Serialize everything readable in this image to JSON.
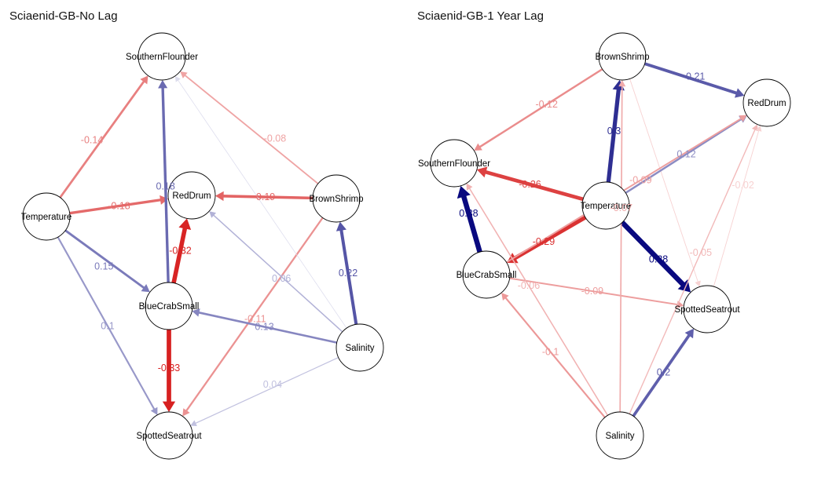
{
  "panels": [
    {
      "title": "Sciaenid-GB-No Lag",
      "nodes": [
        "SouthernFlounder",
        "RedDrum",
        "Temperature",
        "BrownShrimp",
        "BlueCrabSmall",
        "Salinity",
        "SpottedSeatrout"
      ],
      "edges": [
        {
          "from": "Temperature",
          "to": "SouthernFlounder",
          "label": "-0.14",
          "value": -0.14
        },
        {
          "from": "Temperature",
          "to": "RedDrum",
          "label": "-0.18",
          "value": -0.18
        },
        {
          "from": "Temperature",
          "to": "BlueCrabSmall",
          "label": "0.15",
          "value": 0.15
        },
        {
          "from": "Temperature",
          "to": "SpottedSeatrout",
          "label": "0.1",
          "value": 0.1
        },
        {
          "from": "BlueCrabSmall",
          "to": "SouthernFlounder",
          "label": "0.18",
          "value": 0.18
        },
        {
          "from": "BlueCrabSmall",
          "to": "RedDrum",
          "label": "-0.32",
          "value": -0.32
        },
        {
          "from": "BlueCrabSmall",
          "to": "SpottedSeatrout",
          "label": "-0.33",
          "value": -0.33
        },
        {
          "from": "BrownShrimp",
          "to": "SouthernFlounder",
          "label": "-0.08",
          "value": -0.08
        },
        {
          "from": "BrownShrimp",
          "to": "RedDrum",
          "label": "-0.19",
          "value": -0.19
        },
        {
          "from": "BrownShrimp",
          "to": "SpottedSeatrout",
          "label": "-0.11",
          "value": -0.11
        },
        {
          "from": "Salinity",
          "to": "BrownShrimp",
          "label": "0.22",
          "value": 0.22
        },
        {
          "from": "Salinity",
          "to": "RedDrum",
          "label": "0.06",
          "value": 0.06
        },
        {
          "from": "Salinity",
          "to": "BlueCrabSmall",
          "label": "0.13",
          "value": 0.13
        },
        {
          "from": "Salinity",
          "to": "SpottedSeatrout",
          "label": "0.04",
          "value": 0.04
        },
        {
          "from": "Salinity",
          "to": "SouthernFlounder",
          "label": "",
          "value": 0.01
        }
      ]
    },
    {
      "title": "Sciaenid-GB-1 Year Lag",
      "nodes": [
        "BrownShrimp",
        "RedDrum",
        "SouthernFlounder",
        "Temperature",
        "BlueCrabSmall",
        "SpottedSeatrout",
        "Salinity"
      ],
      "edges": [
        {
          "from": "BrownShrimp",
          "to": "RedDrum",
          "label": "0.21",
          "value": 0.21
        },
        {
          "from": "BrownShrimp",
          "to": "SouthernFlounder",
          "label": "-0.12",
          "value": -0.12
        },
        {
          "from": "BrownShrimp",
          "to": "SpottedSeatrout",
          "label": "",
          "value": -0.02
        },
        {
          "from": "Temperature",
          "to": "BrownShrimp",
          "label": "0.3",
          "value": 0.3
        },
        {
          "from": "Temperature",
          "to": "SouthernFlounder",
          "label": "-0.26",
          "value": -0.26
        },
        {
          "from": "Temperature",
          "to": "BlueCrabSmall",
          "label": "-0.29",
          "value": -0.29
        },
        {
          "from": "Temperature",
          "to": "SpottedSeatrout",
          "label": "0.38",
          "value": 0.38
        },
        {
          "from": "Temperature",
          "to": "RedDrum",
          "label": "0.12",
          "value": 0.12
        },
        {
          "from": "BlueCrabSmall",
          "to": "SouthernFlounder",
          "label": "0.38",
          "value": 0.38
        },
        {
          "from": "BlueCrabSmall",
          "to": "SpottedSeatrout",
          "label": "-0.09",
          "value": -0.09
        },
        {
          "from": "BlueCrabSmall",
          "to": "RedDrum",
          "label": "-0.09",
          "value": -0.09
        },
        {
          "from": "Salinity",
          "to": "BrownShrimp",
          "label": "-0.07",
          "value": -0.07
        },
        {
          "from": "Salinity",
          "to": "SouthernFlounder",
          "label": "-0.06",
          "value": -0.06
        },
        {
          "from": "Salinity",
          "to": "BlueCrabSmall",
          "label": "-0.1",
          "value": -0.1
        },
        {
          "from": "Salinity",
          "to": "SpottedSeatrout",
          "label": "0.2",
          "value": 0.2
        },
        {
          "from": "Salinity",
          "to": "RedDrum",
          "label": "-0.05",
          "value": -0.05
        },
        {
          "from": "SpottedSeatrout",
          "to": "RedDrum",
          "label": "-0.02",
          "value": -0.02
        }
      ]
    }
  ],
  "colors": {
    "positive": "#00007a",
    "negative": "#d10000",
    "node_fill": "#ffffff",
    "node_stroke": "#000000",
    "background": "#ffffff"
  }
}
